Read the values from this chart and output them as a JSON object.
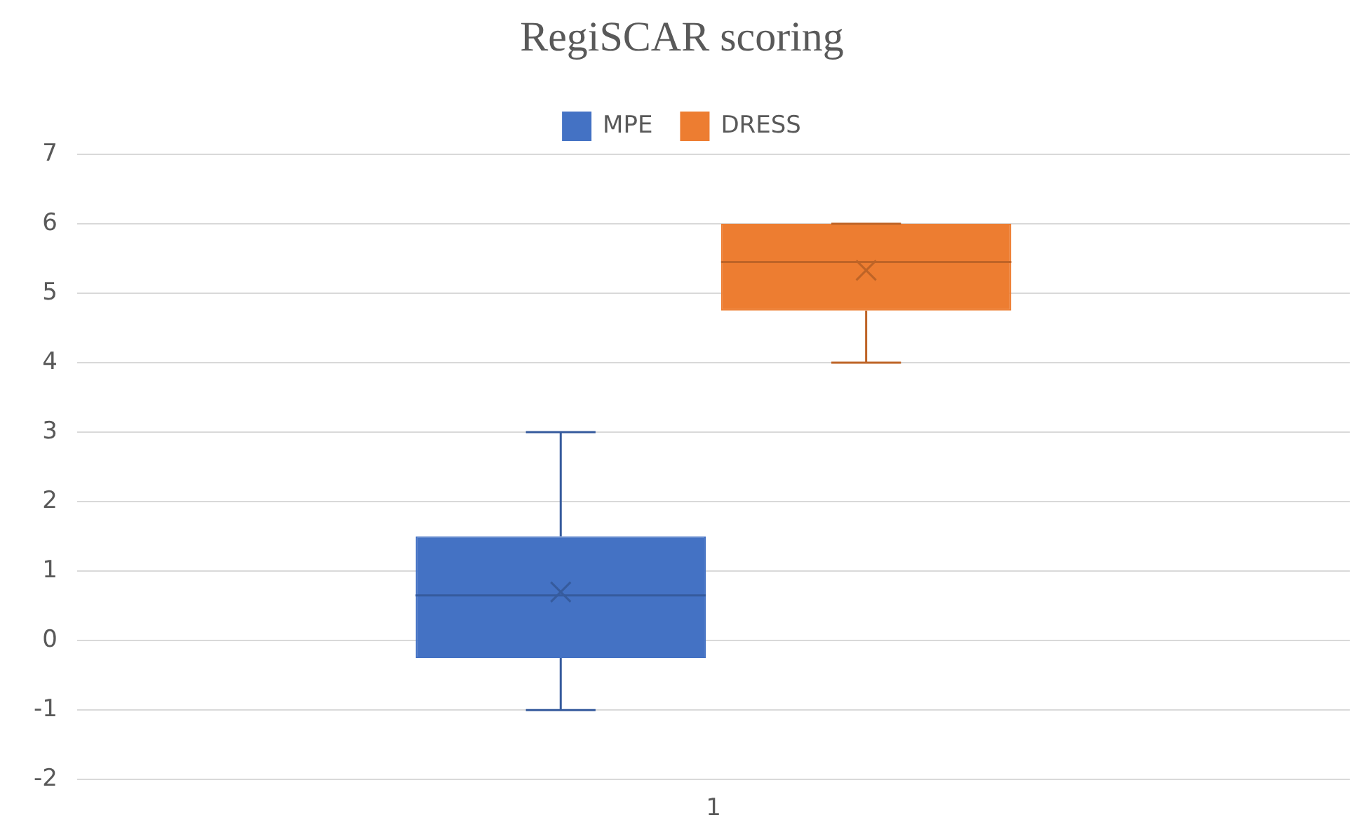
{
  "chart_data": {
    "type": "box",
    "title": "RegiSCAR scoring",
    "categories": [
      "1"
    ],
    "series": [
      {
        "name": "MPE",
        "color": "#4472c4",
        "boxes": [
          {
            "low": -1,
            "q1": -0.25,
            "median": 0.65,
            "q3": 1.5,
            "high": 3,
            "mean": 0.7
          }
        ]
      },
      {
        "name": "DRESS",
        "color": "#ed7d31",
        "boxes": [
          {
            "low": 4,
            "q1": 4.75,
            "median": 5.45,
            "q3": 6,
            "high": 6,
            "mean": 5.33
          }
        ]
      }
    ],
    "ylim": [
      -2,
      7
    ],
    "yticks": [
      -2,
      -1,
      0,
      1,
      2,
      3,
      4,
      5,
      6,
      7
    ],
    "grid": "y",
    "legend": "top"
  }
}
